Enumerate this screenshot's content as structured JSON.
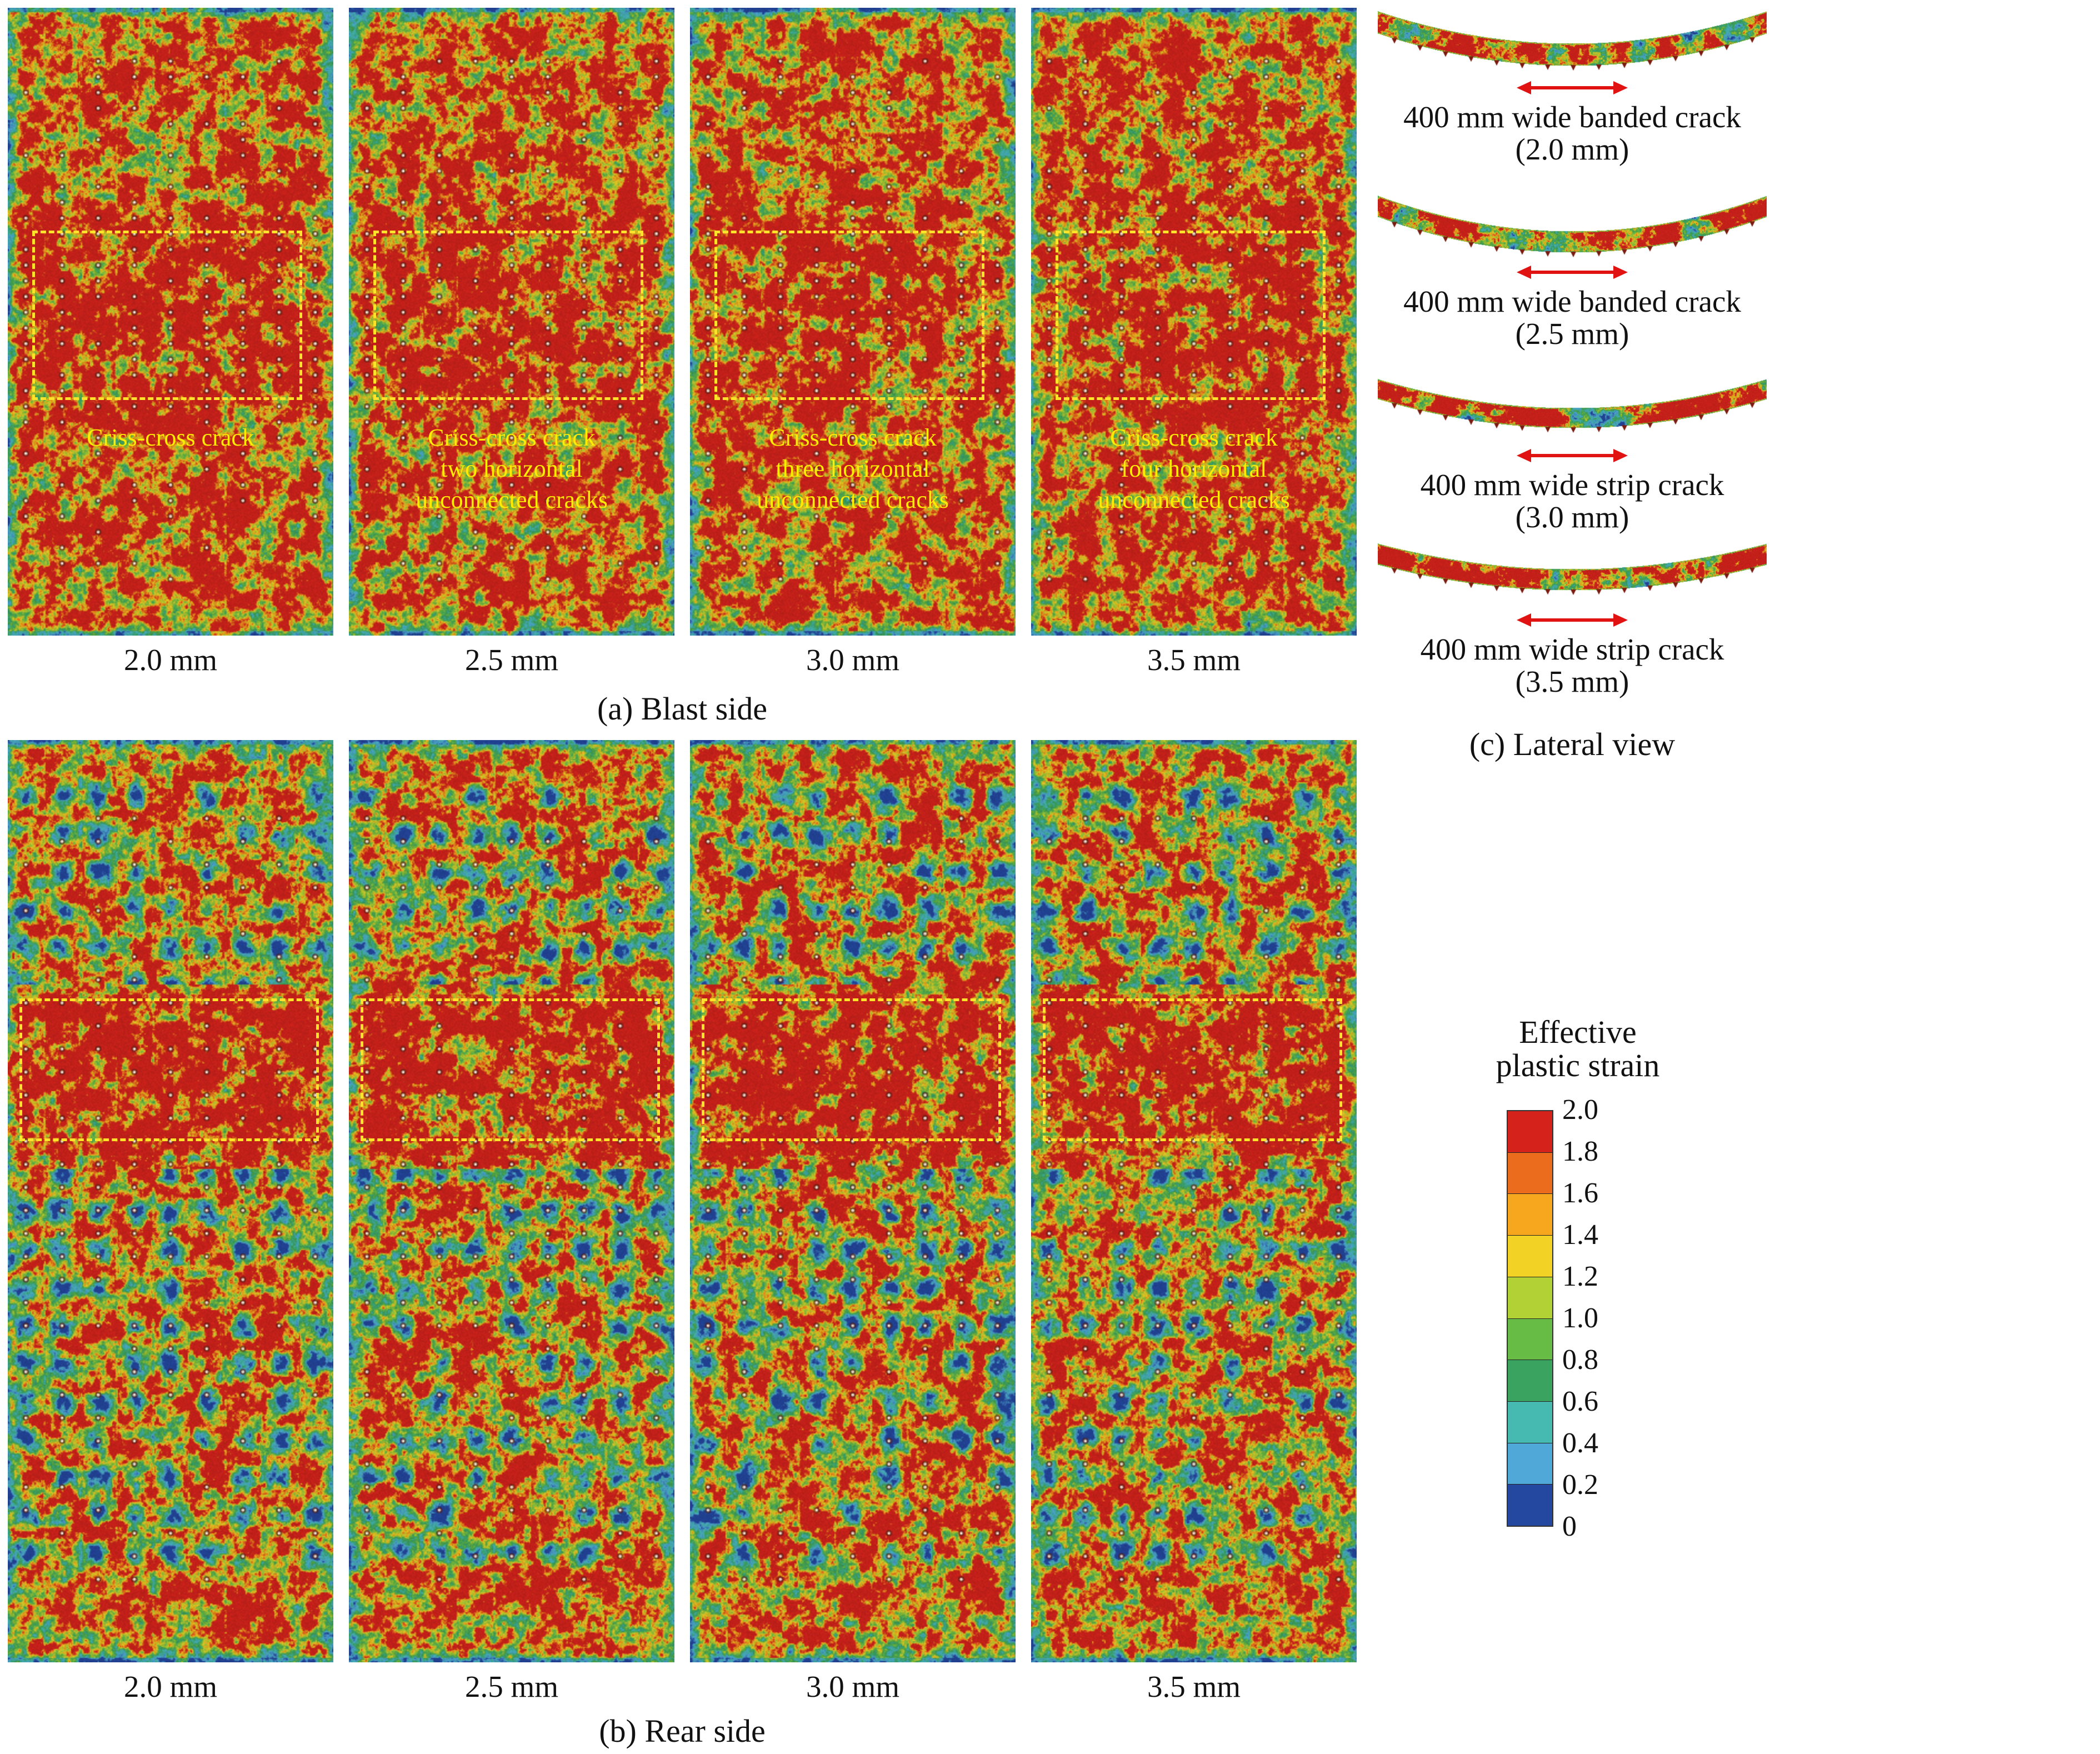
{
  "figure": {
    "blast": {
      "caption": "(a) Blast side",
      "panels": [
        {
          "label": "2.0 mm",
          "annotation": [
            "Criss-cross crack"
          ]
        },
        {
          "label": "2.5 mm",
          "annotation": [
            "Criss-cross crack",
            "two horizontal",
            "unconnected cracks"
          ]
        },
        {
          "label": "3.0 mm",
          "annotation": [
            "Criss-cross crack",
            "three horizontal",
            "unconnected cracks"
          ]
        },
        {
          "label": "3.5 mm",
          "annotation": [
            "Criss-cross crack",
            "four horizontal",
            "unconnected cracks"
          ]
        }
      ]
    },
    "rear": {
      "caption": "(b) Rear side",
      "panels": [
        {
          "label": "2.0 mm"
        },
        {
          "label": "2.5 mm"
        },
        {
          "label": "3.0 mm"
        },
        {
          "label": "3.5 mm"
        }
      ]
    },
    "lateral": {
      "caption": "(c) Lateral view",
      "strips": [
        {
          "line1": "400 mm wide banded crack",
          "line2": "(2.0 mm)"
        },
        {
          "line1": "400 mm wide banded crack",
          "line2": "(2.5 mm)"
        },
        {
          "line1": "400 mm wide strip crack",
          "line2": "(3.0 mm)"
        },
        {
          "line1": "400 mm wide strip crack",
          "line2": "(3.5 mm)"
        }
      ]
    },
    "legend": {
      "title_line1": "Effective",
      "title_line2": "plastic strain",
      "ticks": [
        "2.0",
        "1.8",
        "1.6",
        "1.4",
        "1.2",
        "1.0",
        "0.8",
        "0.6",
        "0.4",
        "0.2",
        "0"
      ],
      "cell_colors_top_to_bottom": [
        "#d5231c",
        "#ec6c1e",
        "#f6a71d",
        "#f2d224",
        "#b2d135",
        "#67bc46",
        "#3aa35f",
        "#46b9b1",
        "#4fa8d8",
        "#24479f"
      ],
      "roi_box_color": "#ffe32b",
      "annotation_color": "#ffec00",
      "arrow_color": "#e01212"
    }
  }
}
